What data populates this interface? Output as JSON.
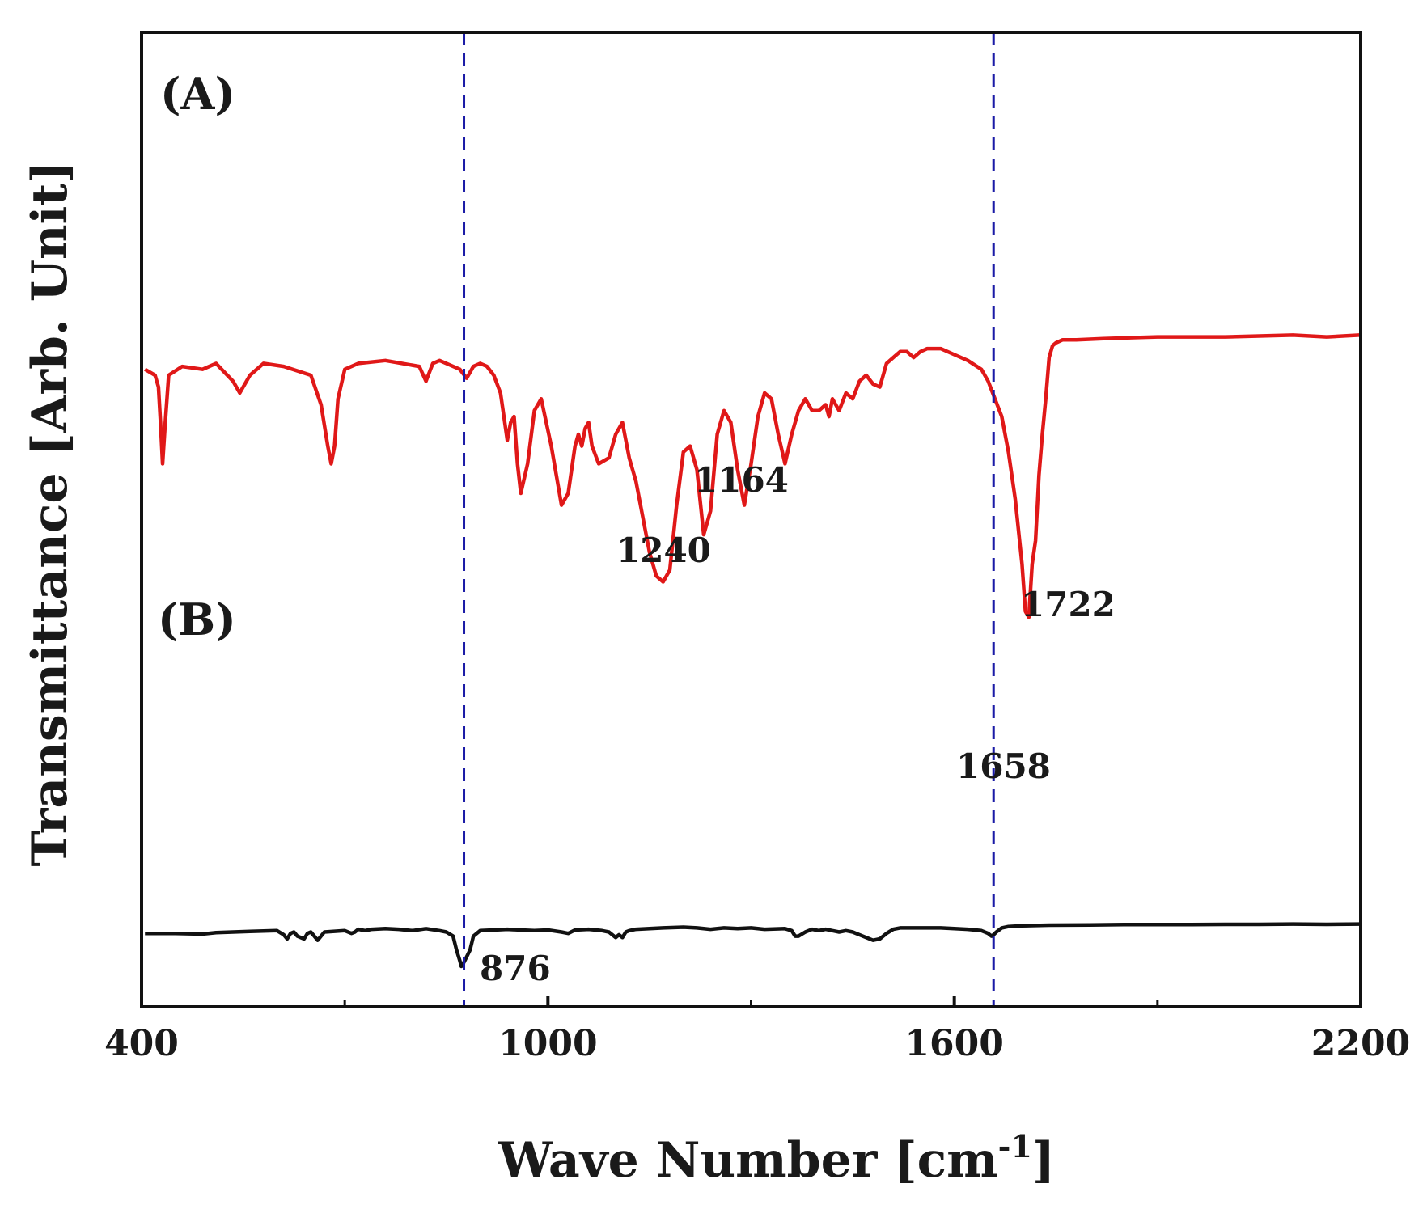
{
  "chart_data": {
    "type": "line",
    "title": "",
    "xlabel": "Wave Number [cm",
    "xlabel_sup": "-1",
    "xlabel_end": "]",
    "ylabel": "Transmittance [Arb. Unit]",
    "xlim": [
      400,
      2200
    ],
    "ylim": [
      0,
      100
    ],
    "x_ticks": [
      400,
      1000,
      1600,
      2200
    ],
    "x_minor_ticks": [
      700,
      1300,
      1900
    ],
    "y_ticks_shown": false,
    "grid": false,
    "reference_lines": [
      {
        "x": 876,
        "style": "dashed",
        "color": "#1a1aa6"
      },
      {
        "x": 1658,
        "style": "dashed",
        "color": "#1a1aa6"
      }
    ],
    "series": [
      {
        "name": "(A)",
        "color": "#e01818",
        "x": [
          405,
          420,
          425,
          428,
          431,
          435,
          440,
          460,
          490,
          510,
          535,
          545,
          560,
          580,
          610,
          650,
          665,
          675,
          680,
          685,
          690,
          700,
          720,
          760,
          810,
          820,
          830,
          840,
          850,
          870,
          880,
          890,
          900,
          910,
          920,
          930,
          935,
          940,
          945,
          950,
          955,
          960,
          970,
          980,
          990,
          1005,
          1020,
          1030,
          1040,
          1045,
          1050,
          1055,
          1060,
          1065,
          1075,
          1090,
          1100,
          1110,
          1120,
          1130,
          1150,
          1160,
          1170,
          1180,
          1190,
          1200,
          1210,
          1220,
          1230,
          1240,
          1250,
          1260,
          1270,
          1280,
          1290,
          1300,
          1310,
          1320,
          1330,
          1340,
          1350,
          1360,
          1370,
          1380,
          1390,
          1400,
          1410,
          1415,
          1420,
          1430,
          1440,
          1450,
          1460,
          1470,
          1480,
          1490,
          1500,
          1510,
          1520,
          1530,
          1540,
          1550,
          1560,
          1580,
          1600,
          1620,
          1640,
          1650,
          1660,
          1670,
          1680,
          1690,
          1700,
          1705,
          1710,
          1715,
          1720,
          1725,
          1730,
          1735,
          1740,
          1745,
          1750,
          1760,
          1780,
          1820,
          1900,
          2000,
          2100,
          2150,
          2198
        ],
        "y": [
          71,
          70,
          68,
          62,
          55,
          62,
          70,
          71.5,
          71,
          72,
          69,
          67,
          70,
          72,
          71.5,
          70,
          65,
          58,
          55,
          58,
          66,
          71,
          72,
          72.5,
          71.5,
          69,
          72,
          72.5,
          72,
          71,
          69.5,
          71.5,
          72,
          71.5,
          70,
          67,
          63,
          59,
          62,
          63,
          55,
          50,
          55,
          64,
          66,
          58,
          48,
          50,
          58,
          60,
          58,
          61,
          62,
          58,
          55,
          56,
          60,
          62,
          56,
          52,
          40,
          36,
          35,
          37,
          48,
          57,
          58,
          54,
          43,
          47,
          60,
          64,
          62,
          54,
          48,
          55,
          63,
          67,
          66,
          60,
          55,
          60,
          64,
          66,
          64,
          64,
          65,
          63,
          66,
          64,
          67,
          66,
          69,
          70,
          68.5,
          68,
          72,
          73,
          74,
          74,
          73,
          74,
          74.5,
          74.5,
          73.5,
          72.5,
          71,
          69,
          66,
          63,
          57,
          49,
          38,
          30,
          29,
          38,
          42,
          53,
          60,
          66,
          73,
          75,
          75.5,
          76,
          76,
          76.2,
          76.5,
          76.5,
          76.8,
          76.5,
          76.8
        ]
      },
      {
        "name": "(B)",
        "color": "#111111",
        "x": [
          405,
          450,
          490,
          510,
          560,
          600,
          610,
          615,
          620,
          625,
          630,
          640,
          645,
          650,
          655,
          660,
          670,
          700,
          710,
          715,
          720,
          730,
          740,
          760,
          780,
          800,
          820,
          840,
          850,
          860,
          865,
          870,
          872,
          876,
          880,
          885,
          890,
          900,
          920,
          940,
          960,
          980,
          1000,
          1020,
          1030,
          1040,
          1060,
          1080,
          1090,
          1100,
          1105,
          1110,
          1115,
          1120,
          1130,
          1150,
          1170,
          1200,
          1220,
          1240,
          1260,
          1280,
          1300,
          1320,
          1350,
          1360,
          1365,
          1370,
          1380,
          1390,
          1400,
          1410,
          1420,
          1430,
          1440,
          1450,
          1460,
          1470,
          1480,
          1490,
          1500,
          1510,
          1520,
          1540,
          1560,
          1580,
          1600,
          1620,
          1640,
          1650,
          1655,
          1658,
          1662,
          1670,
          1680,
          1700,
          1740,
          1800,
          1850,
          1900,
          1950,
          2000,
          2050,
          2100,
          2150,
          2198
        ],
        "y": [
          24,
          24,
          23.5,
          24.5,
          25.5,
          26,
          23,
          20,
          24,
          25,
          22,
          20,
          24,
          25,
          22,
          19,
          25,
          26,
          24,
          25,
          27,
          26,
          27,
          27.5,
          27,
          26,
          27.5,
          26,
          25,
          22,
          12,
          4,
          0,
          3,
          7,
          12,
          22,
          26,
          26.5,
          27,
          26.5,
          26,
          26.5,
          25,
          24,
          26.5,
          27,
          26,
          25,
          21,
          23,
          21,
          25,
          26,
          27,
          27.5,
          28,
          28.5,
          28,
          27,
          28,
          27.5,
          28,
          27,
          27.5,
          26,
          22,
          22,
          25,
          27,
          26,
          27,
          26,
          25,
          26,
          25,
          23,
          21,
          19,
          20,
          24,
          27,
          28,
          28,
          28,
          28,
          27.5,
          27,
          26,
          24,
          22,
          23,
          25,
          28,
          29,
          29.5,
          30,
          30.2,
          30.4,
          30.5,
          30.5,
          30.6,
          30.6,
          30.8,
          30.6,
          30.8
        ]
      }
    ],
    "annotations": [
      {
        "text": "(A)",
        "kind": "panel"
      },
      {
        "text": "(B)",
        "kind": "panel"
      },
      {
        "text": "1240",
        "kind": "peak"
      },
      {
        "text": "1164",
        "kind": "peak"
      },
      {
        "text": "1722",
        "kind": "peak"
      },
      {
        "text": "1658",
        "kind": "peak"
      },
      {
        "text": "876",
        "kind": "peak"
      }
    ]
  }
}
